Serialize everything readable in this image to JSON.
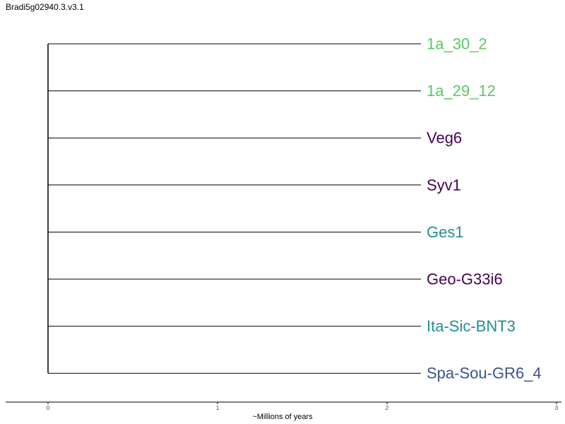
{
  "title": "Bradi5g02940.3.v3.1",
  "axis": {
    "label": "~Millions of years",
    "ticks": [
      {
        "value": 0,
        "label": "0"
      },
      {
        "value": 1,
        "label": "1"
      },
      {
        "value": 2,
        "label": "2"
      },
      {
        "value": 3,
        "label": "3"
      }
    ],
    "range": [
      0,
      3
    ]
  },
  "tree": {
    "root_age": 0,
    "tips": [
      {
        "label": "1a_30_2",
        "color": "#5ac864",
        "branch_length": 2.2
      },
      {
        "label": "1a_29_12",
        "color": "#5ac864",
        "branch_length": 2.2
      },
      {
        "label": "Veg6",
        "color": "#440154",
        "branch_length": 2.2
      },
      {
        "label": "Syv1",
        "color": "#440154",
        "branch_length": 2.2
      },
      {
        "label": "Ges1",
        "color": "#21908c",
        "branch_length": 2.2
      },
      {
        "label": "Geo-G33i6",
        "color": "#440154",
        "branch_length": 2.2
      },
      {
        "label": "Ita-Sic-BNT3",
        "color": "#21908c",
        "branch_length": 2.2
      },
      {
        "label": "Spa-Sou-GR6_4",
        "color": "#3b528b",
        "branch_length": 2.2
      }
    ]
  }
}
